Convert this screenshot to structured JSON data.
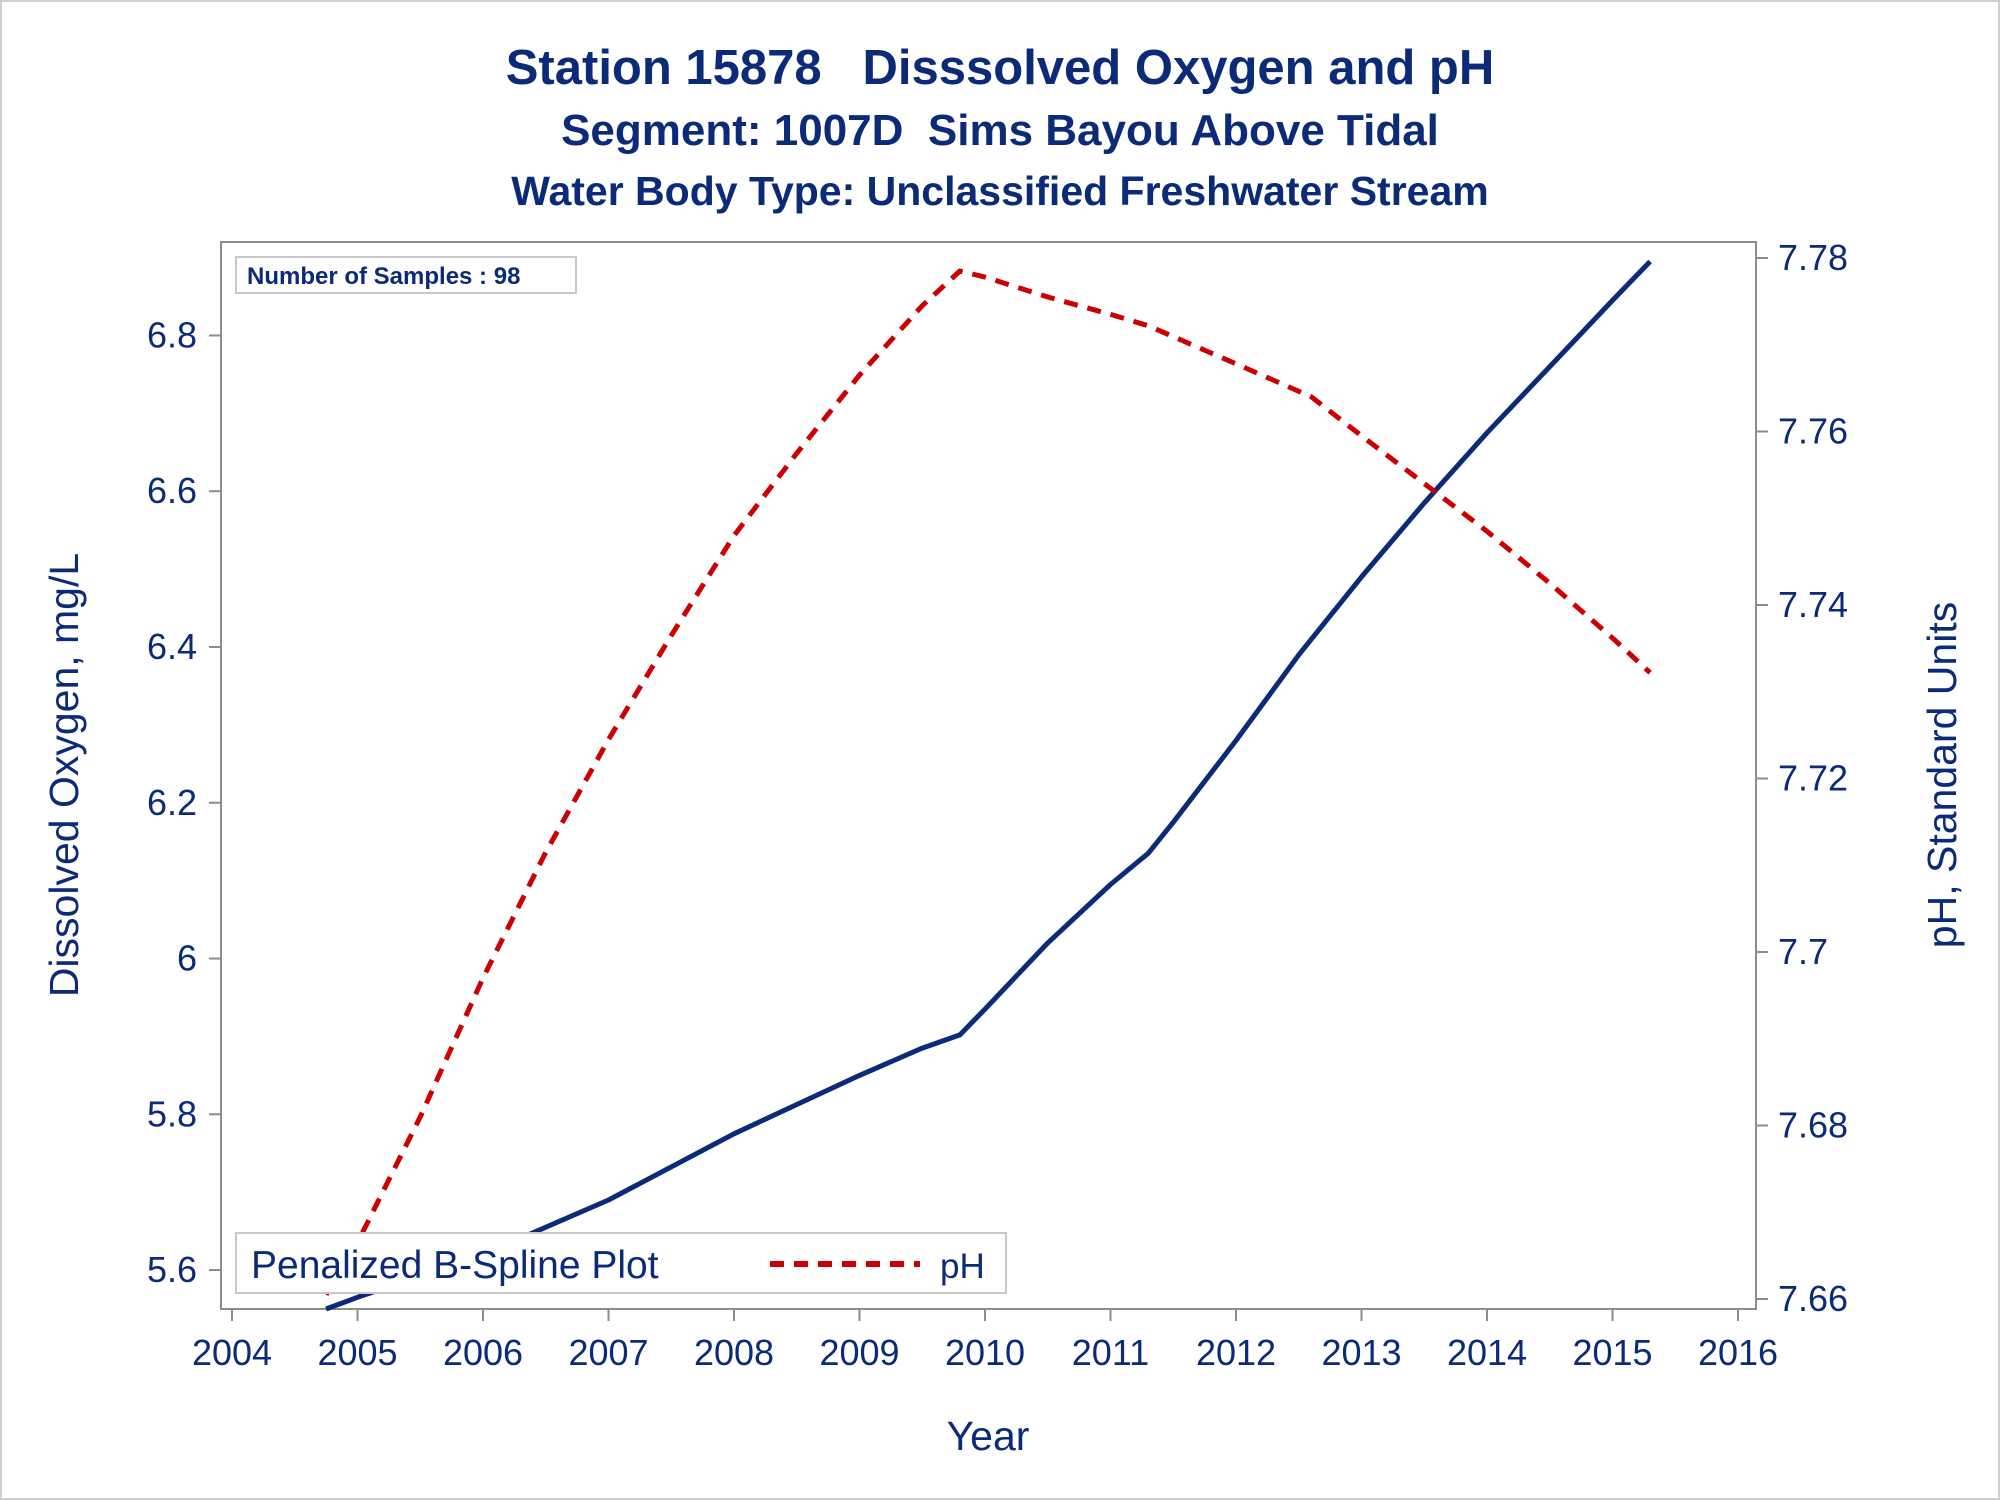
{
  "titles": {
    "line1": "Station 15878   Disssolved Oxygen and pH",
    "line2": "Segment: 1007D  Sims Bayou Above Tidal",
    "line3": "Water Body Type: Unclassified Freshwater Stream"
  },
  "colors": {
    "text": "#0b2a78",
    "do_line": "#0b2a78",
    "ph_line": "#cc0000",
    "axis": "#8c8c8c"
  },
  "inset_box": {
    "text": "Number of Samples : 98"
  },
  "legend": {
    "label": "Penalized B-Spline Plot",
    "items": [
      {
        "series": "pH",
        "style": "dashed"
      }
    ]
  },
  "chart_data": {
    "type": "line",
    "xlabel": "Year",
    "ylabel_left": "Dissolved Oxygen, mg/L",
    "ylabel_right": "pH, Standard Units",
    "xlim": [
      2004,
      2016
    ],
    "ylim_left": [
      5.55,
      6.92
    ],
    "ylim_right": [
      7.66,
      7.78
    ],
    "x_ticks": [
      "2004",
      "2005",
      "2006",
      "2007",
      "2008",
      "2009",
      "2010",
      "2011",
      "2012",
      "2013",
      "2014",
      "2015",
      "2016"
    ],
    "y_left_ticks": [
      "5.6",
      "5.8",
      "6",
      "6.2",
      "6.4",
      "6.6",
      "6.8"
    ],
    "y_right_ticks": [
      "7.66",
      "7.68",
      "7.7",
      "7.72",
      "7.74",
      "7.76",
      "7.78"
    ],
    "grid": false,
    "legend_position": "bottom-left",
    "series": [
      {
        "name": "",
        "axis": "left",
        "style": "solid",
        "x": [
          2004.75,
          2005.0,
          2006.0,
          2007.0,
          2008.0,
          2008.4,
          2009.0,
          2009.5,
          2009.8,
          2010.0,
          2010.5,
          2011.0,
          2011.3,
          2011.5,
          2012.0,
          2012.5,
          2013.0,
          2013.5,
          2014.0,
          2014.5,
          2015.0,
          2015.3
        ],
        "y": [
          5.55,
          5.565,
          5.62,
          5.69,
          5.775,
          5.805,
          5.85,
          5.885,
          5.902,
          5.935,
          6.02,
          6.095,
          6.135,
          6.175,
          6.28,
          6.39,
          6.49,
          6.585,
          6.675,
          6.76,
          6.845,
          6.895
        ]
      },
      {
        "name": "pH",
        "axis": "right",
        "style": "dashed",
        "x": [
          2004.75,
          2005.0,
          2005.5,
          2006.0,
          2006.5,
          2007.0,
          2007.5,
          2008.0,
          2008.5,
          2009.0,
          2009.5,
          2009.8,
          2010.0,
          2010.5,
          2011.0,
          2011.3,
          2012.0,
          2012.6,
          2013.0,
          2013.5,
          2014.0,
          2014.5,
          2015.0,
          2015.3
        ],
        "y": [
          7.6605,
          7.6665,
          7.681,
          7.697,
          7.7115,
          7.7245,
          7.7365,
          7.748,
          7.7575,
          7.7665,
          7.7745,
          7.7785,
          7.7778,
          7.7755,
          7.7735,
          7.7722,
          7.7678,
          7.764,
          7.7595,
          7.754,
          7.7485,
          7.7425,
          7.7362,
          7.7322
        ]
      }
    ]
  }
}
